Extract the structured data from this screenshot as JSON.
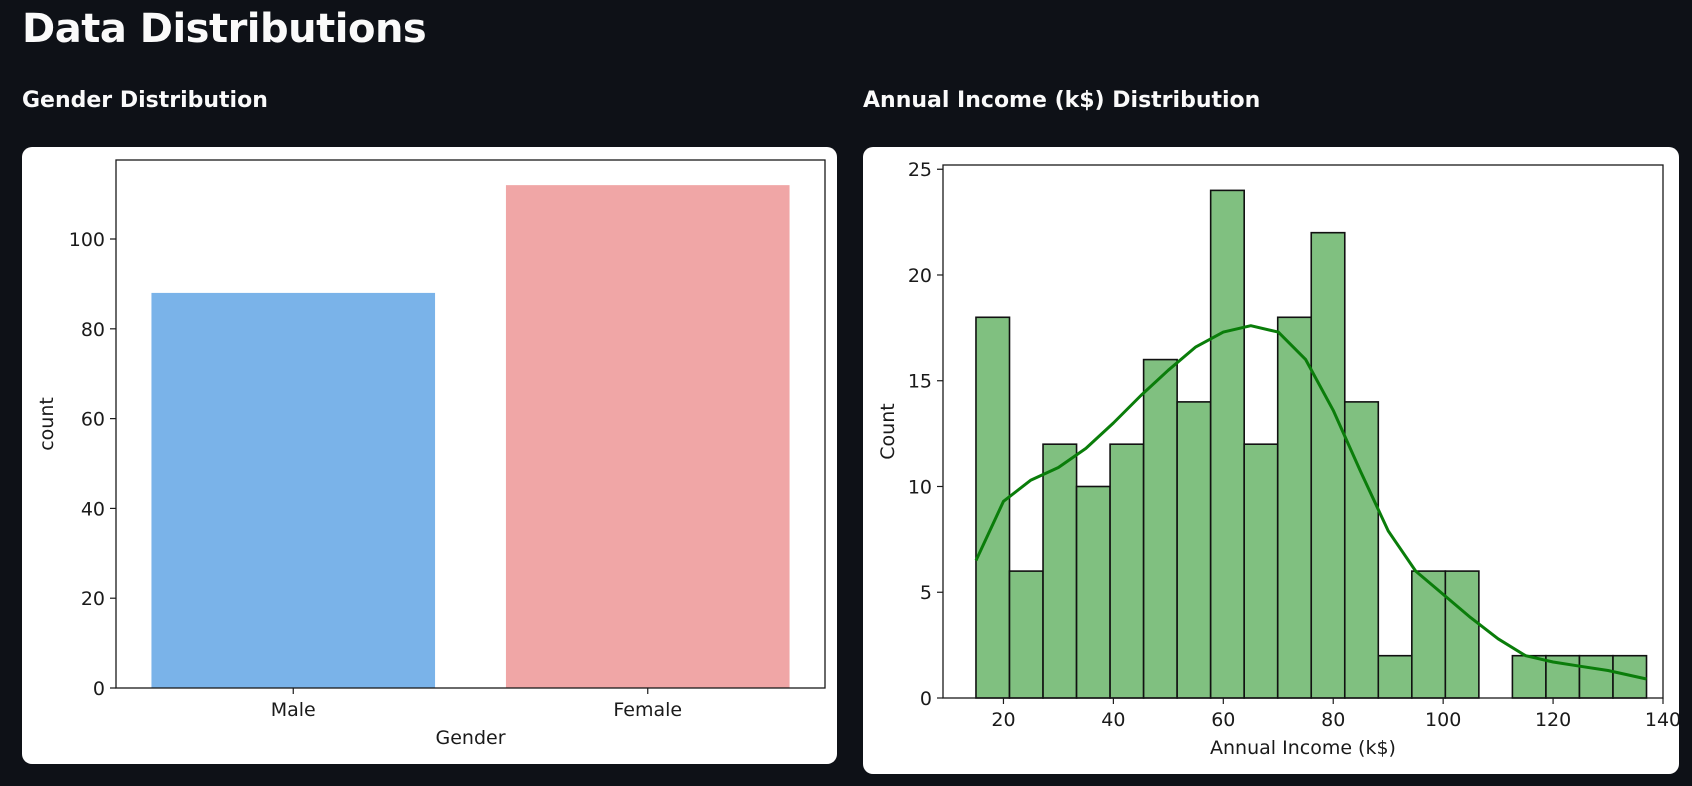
{
  "page": {
    "title": "Data Distributions"
  },
  "sections": [
    {
      "title": "Gender Distribution"
    },
    {
      "title": "Annual Income (k$) Distribution"
    }
  ],
  "chart_data": [
    {
      "type": "bar",
      "title": "",
      "xlabel": "Gender",
      "ylabel": "count",
      "categories": [
        "Male",
        "Female"
      ],
      "values": [
        88,
        112
      ],
      "colors": [
        "#7ab3e9",
        "#f0a6a6"
      ],
      "ylim": [
        0,
        117.6
      ],
      "yticks": [
        0,
        20,
        40,
        60,
        80,
        100
      ],
      "grid": false
    },
    {
      "type": "histogram",
      "title": "",
      "xlabel": "Annual Income (k$)",
      "ylabel": "Count",
      "bin_start": 15,
      "bin_width": 6.1,
      "counts": [
        18,
        6,
        12,
        10,
        12,
        16,
        14,
        24,
        12,
        18,
        22,
        14,
        2,
        6,
        6,
        0,
        2,
        2,
        2,
        2
      ],
      "bar_color": "#80c080",
      "edge_color": "#111111",
      "xlim": [
        9,
        140
      ],
      "ylim": [
        0,
        25.2
      ],
      "xticks": [
        20,
        40,
        60,
        80,
        100,
        120,
        140
      ],
      "yticks": [
        0,
        5,
        10,
        15,
        20,
        25
      ],
      "kde": {
        "color": "#0a7d0a",
        "x": [
          15,
          20,
          25,
          30,
          35,
          40,
          45,
          50,
          55,
          60,
          65,
          70,
          75,
          80,
          85,
          90,
          95,
          100,
          105,
          110,
          115,
          120,
          125,
          130,
          137
        ],
        "y": [
          6.5,
          9.3,
          10.3,
          10.9,
          11.8,
          13.0,
          14.3,
          15.5,
          16.6,
          17.3,
          17.6,
          17.3,
          16.0,
          13.6,
          10.7,
          7.9,
          6.0,
          4.9,
          3.8,
          2.8,
          2.0,
          1.7,
          1.5,
          1.3,
          0.9
        ]
      },
      "grid": false
    }
  ]
}
